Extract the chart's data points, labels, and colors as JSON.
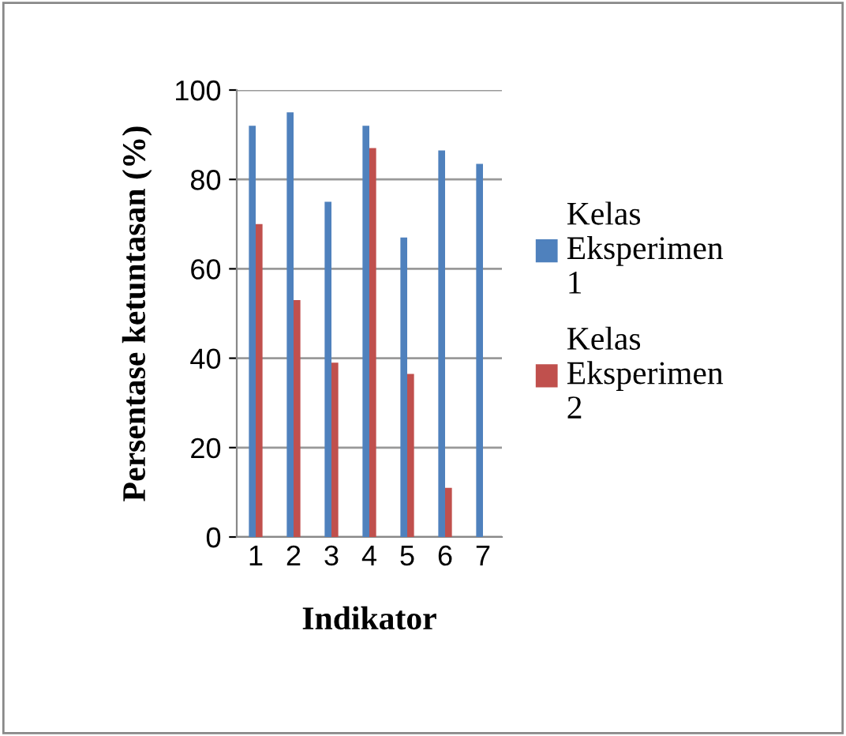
{
  "chart_data": {
    "type": "bar",
    "xlabel": "Indikator",
    "ylabel": "Persentase ketuntasan (%)",
    "categories": [
      "1",
      "2",
      "3",
      "4",
      "5",
      "6",
      "7"
    ],
    "series": [
      {
        "name": "Kelas Eksperimen 1",
        "color": "#4f81bd",
        "values": [
          92,
          95,
          75,
          92,
          67,
          86.5,
          83.5
        ]
      },
      {
        "name": "Kelas Eksperimen 2",
        "color": "#c0504d",
        "values": [
          70,
          53,
          39,
          87,
          36.5,
          11,
          0
        ]
      }
    ],
    "ylim": [
      0,
      100
    ],
    "yticks": [
      0,
      20,
      40,
      60,
      80,
      100
    ],
    "grid": "y",
    "legend": "right"
  }
}
